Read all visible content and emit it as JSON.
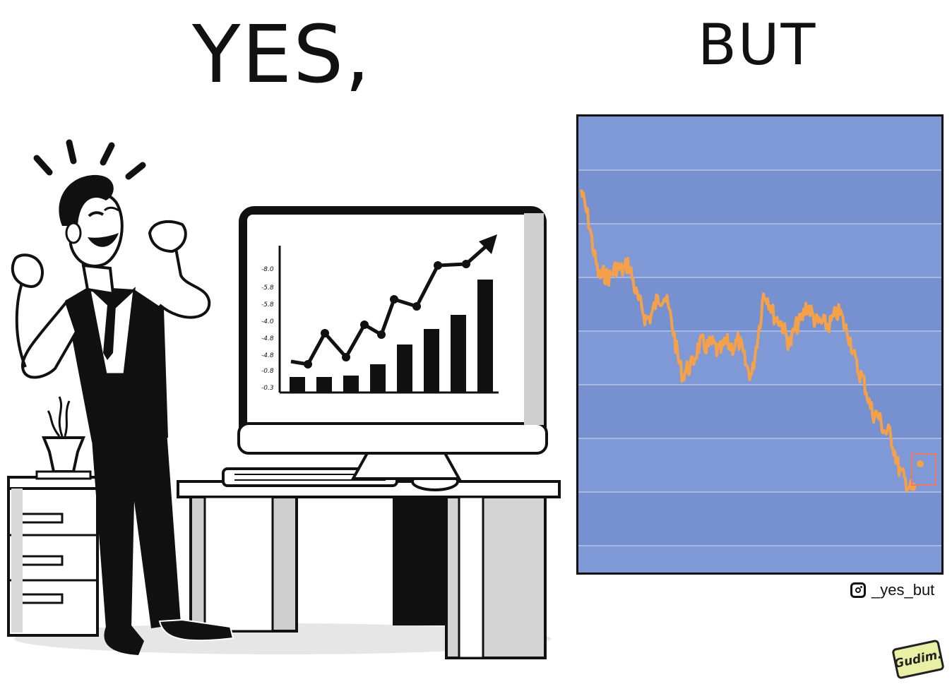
{
  "panels": {
    "left": {
      "title": "YES,"
    },
    "right": {
      "title": "BUT"
    }
  },
  "monitor_chart": {
    "tick_labels": [
      "-8.0",
      "-5.8",
      "-5.8",
      "-4.0",
      "-4.8",
      "-4.8",
      "-0.8",
      "-0.3"
    ]
  },
  "stock_chart": {
    "type": "line",
    "line_color": "#f4a14a",
    "background_color": "#7f98d6",
    "band_color": "#7790cf",
    "grid": true,
    "trend": "falling",
    "highlight_last_point": true
  },
  "credit": {
    "icon": "instagram-icon",
    "handle": "_yes_but"
  },
  "signature": {
    "text": "Gudim."
  }
}
